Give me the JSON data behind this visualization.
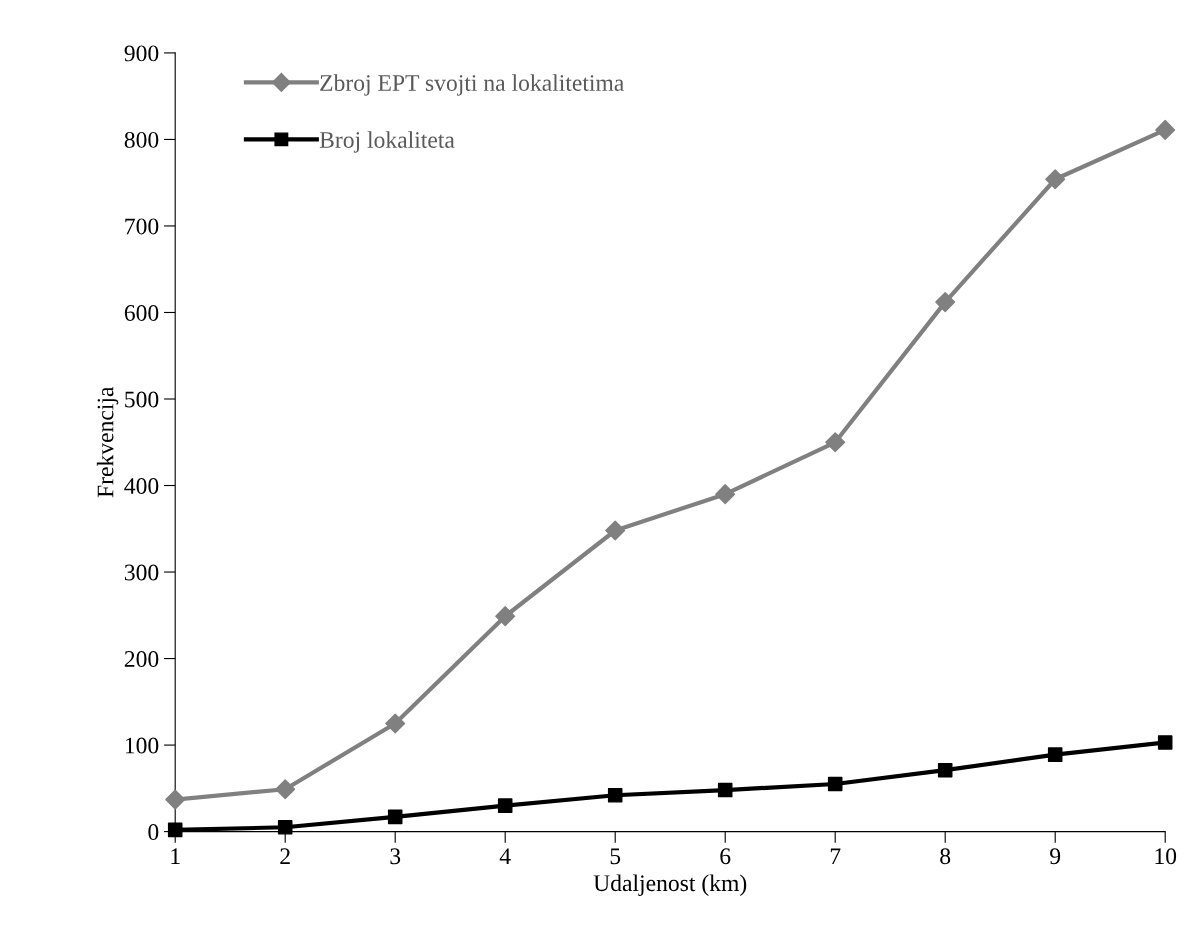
{
  "chart_data": {
    "type": "line",
    "xlabel": "Udaljenost (km)",
    "ylabel": "Frekvencija",
    "x": [
      1,
      2,
      3,
      4,
      5,
      6,
      7,
      8,
      9,
      10
    ],
    "series": [
      {
        "name": "Zbroj EPT svojti na lokalitetima",
        "color": "#808080",
        "marker": "diamond",
        "values": [
          37,
          49,
          125,
          249,
          348,
          390,
          450,
          612,
          754,
          811
        ]
      },
      {
        "name": "Broj lokaliteta",
        "color": "#000000",
        "marker": "square",
        "values": [
          2,
          5,
          17,
          30,
          42,
          48,
          55,
          71,
          89,
          103
        ]
      }
    ],
    "xlim": [
      1,
      10
    ],
    "xticks": [
      1,
      2,
      3,
      4,
      5,
      6,
      7,
      8,
      9,
      10
    ],
    "ylim": [
      0,
      900
    ],
    "yticks": [
      0,
      100,
      200,
      300,
      400,
      500,
      600,
      700,
      800,
      900
    ],
    "grid": false,
    "legend": "top left",
    "line_style": "solid"
  }
}
